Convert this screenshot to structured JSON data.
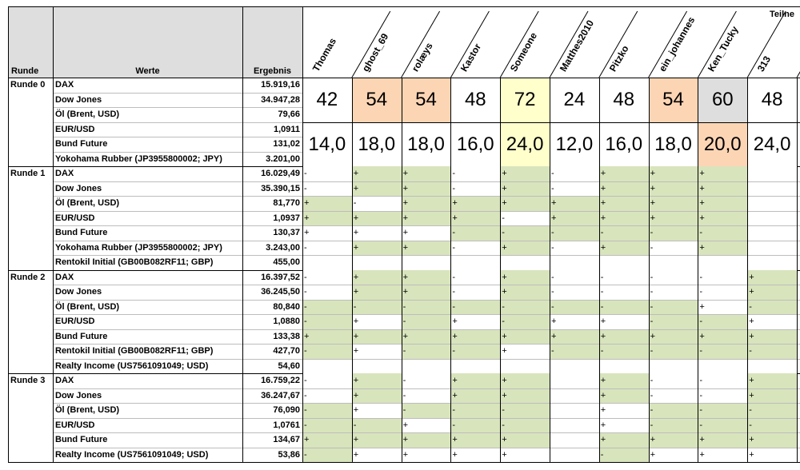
{
  "header": {
    "runde": "Runde",
    "werte": "Werte",
    "ergebnis": "Ergebnis",
    "teilnehmer": "Teilne"
  },
  "participants": [
    "Thomas",
    "ghost_69",
    "rolæys",
    "Kastor",
    "Someone",
    "Matthes2010",
    "Pitzko",
    "ein_johannes",
    "Ken_Tucky",
    "313"
  ],
  "colors": {
    "green": "#d8e4bc",
    "orange": "#fcd5b4",
    "yellow": "#ffffcc",
    "gray": "#dedede",
    "none": "#ffffff"
  },
  "rounds": [
    {
      "label": "Runde 0",
      "rows": [
        {
          "name": "DAX",
          "result": "15.919,16"
        },
        {
          "name": "Dow Jones",
          "result": "34.947,28"
        },
        {
          "name": "Öl (Brent, USD)",
          "result": "79,66"
        },
        {
          "name": "EUR/USD",
          "result": "1,0911"
        },
        {
          "name": "Bund Future",
          "result": "131,02"
        },
        {
          "name": "Yokohama Rubber (JP3955800002; JPY)",
          "result": "3.201,00"
        }
      ],
      "scores": [
        [
          {
            "v": "42",
            "c": "none"
          },
          {
            "v": "54",
            "c": "orange"
          },
          {
            "v": "54",
            "c": "orange"
          },
          {
            "v": "48",
            "c": "none"
          },
          {
            "v": "72",
            "c": "yellow"
          },
          {
            "v": "24",
            "c": "none"
          },
          {
            "v": "48",
            "c": "none"
          },
          {
            "v": "54",
            "c": "orange"
          },
          {
            "v": "60",
            "c": "gray"
          },
          {
            "v": "48",
            "c": "none"
          }
        ],
        [
          {
            "v": "14,0",
            "c": "none"
          },
          {
            "v": "18,0",
            "c": "none"
          },
          {
            "v": "18,0",
            "c": "none"
          },
          {
            "v": "16,0",
            "c": "none"
          },
          {
            "v": "24,0",
            "c": "yellow"
          },
          {
            "v": "12,0",
            "c": "none"
          },
          {
            "v": "16,0",
            "c": "none"
          },
          {
            "v": "18,0",
            "c": "none"
          },
          {
            "v": "20,0",
            "c": "orange"
          },
          {
            "v": "24,0",
            "c": "none"
          }
        ]
      ]
    },
    {
      "label": "Runde 1",
      "rows": [
        {
          "name": "DAX",
          "result": "16.029,49",
          "marks": [
            "-",
            "+",
            "+",
            "-",
            "+",
            "-",
            "+",
            "+",
            "+",
            ""
          ],
          "green": [
            0,
            1,
            1,
            0,
            1,
            0,
            1,
            1,
            1,
            0
          ]
        },
        {
          "name": "Dow Jones",
          "result": "35.390,15",
          "marks": [
            "-",
            "+",
            "+",
            "-",
            "+",
            "-",
            "+",
            "+",
            "+",
            ""
          ],
          "green": [
            0,
            1,
            1,
            0,
            1,
            0,
            1,
            1,
            1,
            0
          ]
        },
        {
          "name": "Öl (Brent, USD)",
          "result": "81,770",
          "marks": [
            "+",
            "-",
            "+",
            "+",
            "+",
            "+",
            "+",
            "+",
            "+",
            ""
          ],
          "green": [
            1,
            0,
            1,
            1,
            1,
            1,
            1,
            1,
            1,
            0
          ]
        },
        {
          "name": "EUR/USD",
          "result": "1,0937",
          "marks": [
            "+",
            "+",
            "+",
            "+",
            "-",
            "+",
            "+",
            "+",
            "+",
            ""
          ],
          "green": [
            1,
            1,
            1,
            1,
            0,
            1,
            1,
            1,
            1,
            0
          ]
        },
        {
          "name": "Bund Future",
          "result": "130,37",
          "marks": [
            "+",
            "+",
            "+",
            "-",
            "-",
            "-",
            "-",
            "-",
            "-",
            ""
          ],
          "green": [
            0,
            0,
            0,
            1,
            1,
            1,
            1,
            1,
            1,
            0
          ]
        },
        {
          "name": "Yokohama Rubber (JP3955800002; JPY)",
          "result": "3.243,00",
          "marks": [
            "-",
            "+",
            "+",
            "-",
            "+",
            "-",
            "+",
            "-",
            "+",
            ""
          ],
          "green": [
            0,
            1,
            1,
            0,
            1,
            0,
            1,
            0,
            1,
            0
          ]
        },
        {
          "name": "Rentokil Initial (GB00B082RF11; GBP)",
          "result": "455,00",
          "marks": [
            "",
            "",
            "",
            "",
            "",
            "",
            "",
            "",
            "",
            ""
          ],
          "green": [
            0,
            0,
            0,
            0,
            0,
            0,
            0,
            0,
            0,
            0
          ]
        }
      ]
    },
    {
      "label": "Runde 2",
      "rows": [
        {
          "name": "DAX",
          "result": "16.397,52",
          "marks": [
            "-",
            "+",
            "+",
            "-",
            "+",
            "-",
            "-",
            "-",
            "-",
            "+"
          ],
          "green": [
            0,
            1,
            1,
            0,
            1,
            0,
            0,
            0,
            0,
            1
          ]
        },
        {
          "name": "Dow Jones",
          "result": "36.245,50",
          "marks": [
            "-",
            "+",
            "+",
            "-",
            "+",
            "-",
            "-",
            "-",
            "-",
            "+"
          ],
          "green": [
            0,
            1,
            1,
            0,
            1,
            0,
            0,
            0,
            0,
            1
          ]
        },
        {
          "name": "Öl (Brent, USD)",
          "result": "80,840",
          "marks": [
            "-",
            "-",
            "-",
            "-",
            "-",
            "-",
            "-",
            "-",
            "+",
            "-"
          ],
          "green": [
            1,
            1,
            1,
            1,
            1,
            1,
            1,
            1,
            0,
            1
          ]
        },
        {
          "name": "EUR/USD",
          "result": "1,0880",
          "marks": [
            "-",
            "+",
            "-",
            "+",
            "-",
            "+",
            "+",
            "-",
            "-",
            "+"
          ],
          "green": [
            1,
            0,
            1,
            0,
            1,
            0,
            0,
            1,
            1,
            0
          ]
        },
        {
          "name": "Bund Future",
          "result": "133,38",
          "marks": [
            "+",
            "+",
            "+",
            "+",
            "+",
            "+",
            "+",
            "+",
            "+",
            "+"
          ],
          "green": [
            1,
            1,
            1,
            1,
            1,
            1,
            1,
            1,
            1,
            1
          ]
        },
        {
          "name": "Rentokil Initial (GB00B082RF11; GBP)",
          "result": "427,70",
          "marks": [
            "-",
            "+",
            "-",
            "-",
            "+",
            "-",
            "-",
            "-",
            "-",
            "-"
          ],
          "green": [
            1,
            0,
            1,
            1,
            0,
            1,
            1,
            1,
            1,
            1
          ]
        },
        {
          "name": "Realty Income (US7561091049; USD)",
          "result": "54,60",
          "marks": [
            "",
            "",
            "",
            "",
            "",
            "",
            "",
            "",
            "",
            ""
          ],
          "green": [
            0,
            0,
            0,
            0,
            0,
            0,
            0,
            0,
            0,
            0
          ]
        }
      ]
    },
    {
      "label": "Runde 3",
      "rows": [
        {
          "name": "DAX",
          "result": "16.759,22",
          "marks": [
            "-",
            "+",
            "-",
            "+",
            "+",
            "",
            "+",
            "-",
            "-",
            "+"
          ],
          "green": [
            0,
            1,
            0,
            1,
            1,
            0,
            1,
            0,
            0,
            1
          ]
        },
        {
          "name": "Dow Jones",
          "result": "36.247,67",
          "marks": [
            "-",
            "+",
            "-",
            "+",
            "+",
            "",
            "+",
            "-",
            "-",
            "+"
          ],
          "green": [
            0,
            1,
            0,
            1,
            1,
            0,
            1,
            0,
            0,
            1
          ]
        },
        {
          "name": "Öl (Brent, USD)",
          "result": "76,090",
          "marks": [
            "-",
            "+",
            "-",
            "-",
            "-",
            "",
            "+",
            "-",
            "-",
            "-"
          ],
          "green": [
            1,
            0,
            1,
            1,
            1,
            0,
            0,
            1,
            1,
            1
          ]
        },
        {
          "name": "EUR/USD",
          "result": "1,0761",
          "marks": [
            "-",
            "-",
            "+",
            "-",
            "-",
            "",
            "+",
            "-",
            "-",
            "-"
          ],
          "green": [
            1,
            1,
            0,
            1,
            1,
            0,
            0,
            1,
            1,
            1
          ]
        },
        {
          "name": "Bund Future",
          "result": "134,67",
          "marks": [
            "+",
            "+",
            "+",
            "+",
            "+",
            "",
            "+",
            "+",
            "+",
            "+"
          ],
          "green": [
            1,
            1,
            1,
            1,
            1,
            0,
            1,
            1,
            1,
            1
          ]
        },
        {
          "name": "Realty Income (US7561091049; USD)",
          "result": "53,86",
          "marks": [
            "-",
            "+",
            "+",
            "+",
            "+",
            "",
            "-",
            "+",
            "+",
            "+"
          ],
          "green": [
            1,
            0,
            0,
            0,
            0,
            0,
            1,
            0,
            0,
            0
          ]
        }
      ]
    }
  ]
}
